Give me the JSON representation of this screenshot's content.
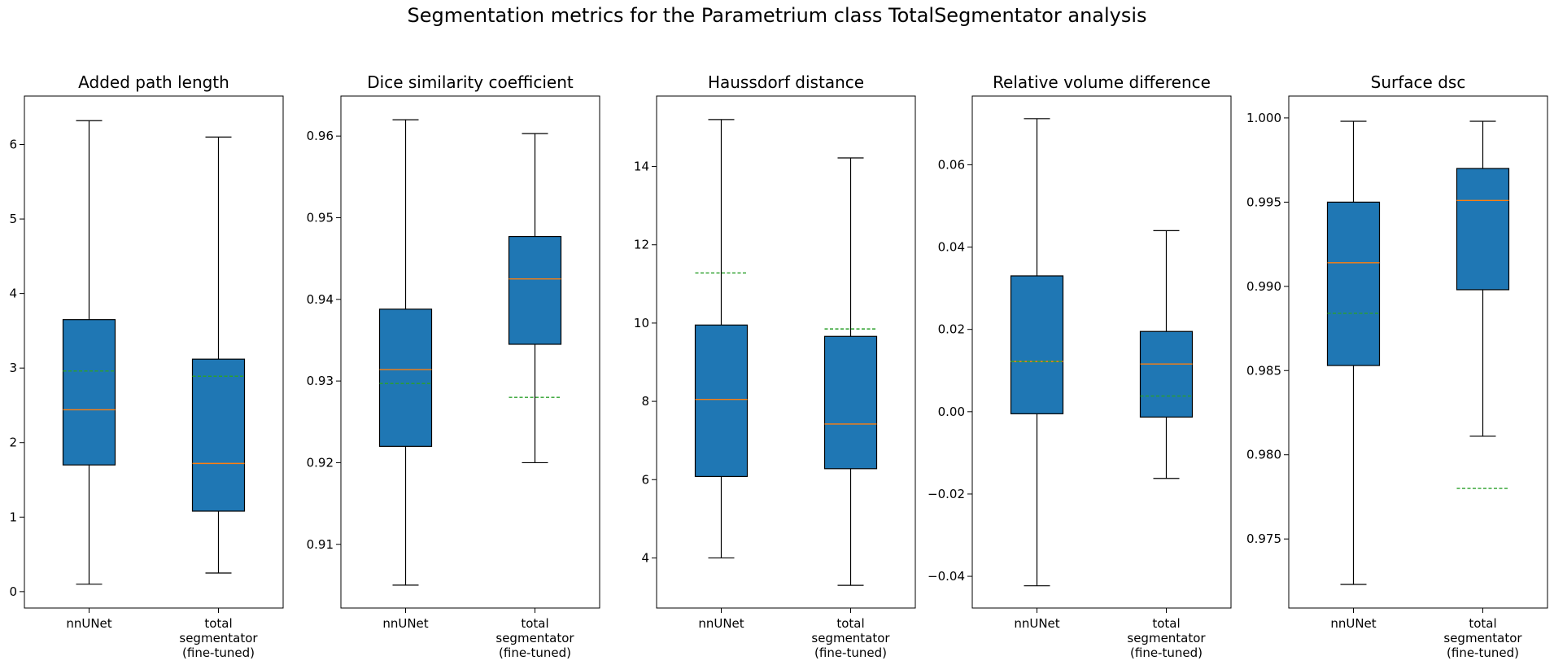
{
  "figure": {
    "title": "Segmentation metrics for the Parametrium class TotalSegmentator analysis"
  },
  "colors": {
    "box_fill": "#1f77b4",
    "median": "#ff7f0e",
    "mean": "#2ca02c",
    "edge": "#000000"
  },
  "chart_data": [
    {
      "type": "box",
      "title": "Added path length",
      "categories": [
        "nnUNet",
        "total\nsegmentator\n(fine-tuned)"
      ],
      "ylim": [
        -0.22,
        6.65
      ],
      "yticks": [
        0,
        1,
        2,
        3,
        4,
        5,
        6
      ],
      "tick_decimals": 0,
      "boxes": [
        {
          "whislo": 0.1,
          "q1": 1.7,
          "med": 2.44,
          "q3": 3.65,
          "whishi": 6.32,
          "mean": 2.96
        },
        {
          "whislo": 0.25,
          "q1": 1.08,
          "med": 1.72,
          "q3": 3.12,
          "whishi": 6.1,
          "mean": 2.89
        }
      ]
    },
    {
      "type": "box",
      "title": "Dice similarity coefficient",
      "categories": [
        "nnUNet",
        "total\nsegmentator\n(fine-tuned)"
      ],
      "ylim": [
        0.9022,
        0.9649
      ],
      "yticks": [
        0.91,
        0.92,
        0.93,
        0.94,
        0.95,
        0.96
      ],
      "tick_decimals": 2,
      "boxes": [
        {
          "whislo": 0.905,
          "q1": 0.922,
          "med": 0.9314,
          "q3": 0.9388,
          "whishi": 0.962,
          "mean": 0.9297
        },
        {
          "whislo": 0.92,
          "q1": 0.9345,
          "med": 0.9425,
          "q3": 0.9477,
          "whishi": 0.9603,
          "mean": 0.928
        }
      ]
    },
    {
      "type": "box",
      "title": "Haussdorf distance",
      "categories": [
        "nnUNet",
        "total\nsegmentator\n(fine-tuned)"
      ],
      "ylim": [
        2.72,
        15.8
      ],
      "yticks": [
        4,
        6,
        8,
        10,
        12,
        14
      ],
      "tick_decimals": 0,
      "boxes": [
        {
          "whislo": 4.0,
          "q1": 6.08,
          "med": 8.05,
          "q3": 9.95,
          "whishi": 15.2,
          "mean": 11.28
        },
        {
          "whislo": 3.3,
          "q1": 6.28,
          "med": 7.42,
          "q3": 9.66,
          "whishi": 14.22,
          "mean": 9.85
        }
      ]
    },
    {
      "type": "box",
      "title": "Relative volume difference",
      "categories": [
        "nnUNet",
        "total\nsegmentator\n(fine-tuned)"
      ],
      "ylim": [
        -0.0477,
        0.0767
      ],
      "yticks": [
        -0.04,
        -0.02,
        0.0,
        0.02,
        0.04,
        0.06
      ],
      "tick_decimals": 2,
      "boxes": [
        {
          "whislo": -0.0423,
          "q1": -0.0005,
          "med": 0.0122,
          "q3": 0.033,
          "whishi": 0.0712,
          "mean": 0.0122
        },
        {
          "whislo": -0.0162,
          "q1": -0.0013,
          "med": 0.0116,
          "q3": 0.0195,
          "whishi": 0.044,
          "mean": 0.0038
        }
      ]
    },
    {
      "type": "box",
      "title": "Surface dsc",
      "categories": [
        "nnUNet",
        "total\nsegmentator\n(fine-tuned)"
      ],
      "ylim": [
        0.9709,
        1.0013
      ],
      "yticks": [
        0.975,
        0.98,
        0.985,
        0.99,
        0.995,
        1.0
      ],
      "tick_decimals": 3,
      "boxes": [
        {
          "whislo": 0.9723,
          "q1": 0.9853,
          "med": 0.9914,
          "q3": 0.995,
          "whishi": 0.9998,
          "mean": 0.9884
        },
        {
          "whislo": 0.9811,
          "q1": 0.9898,
          "med": 0.9951,
          "q3": 0.997,
          "whishi": 0.9998,
          "mean": 0.978
        }
      ]
    }
  ]
}
